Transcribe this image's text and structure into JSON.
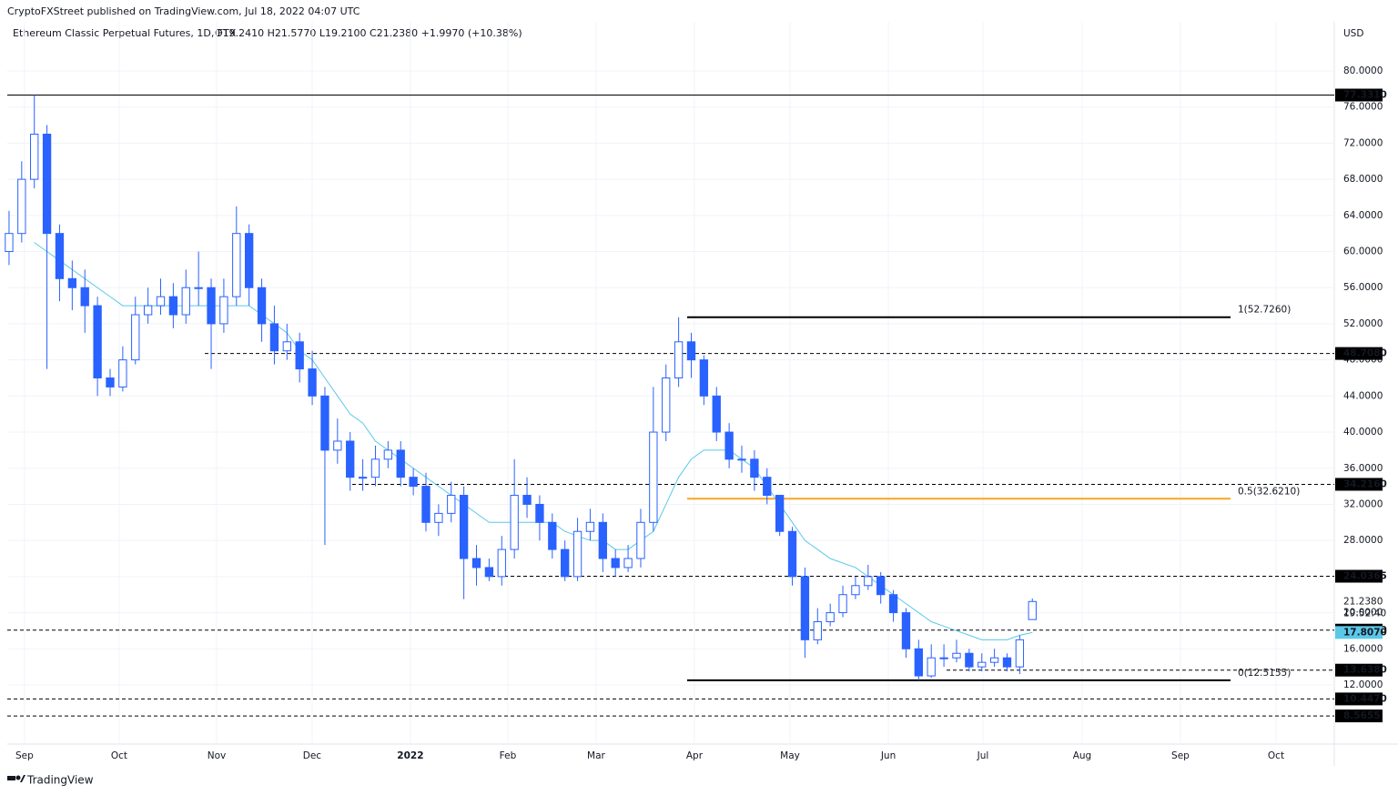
{
  "chart_data": {
    "type": "candlestick",
    "publisher": "CryptoFXStreet published on TradingView.com, Jul 18, 2022 04:07 UTC",
    "title": "Ethereum Classic Perpetual Futures, 1D, FTX",
    "ohlc_legend": "O19.2410  H21.5770  L19.2100  C21.2380  +1.9970 (+10.38%)",
    "currency": "USD",
    "brand": "TradingView",
    "countdown": "19:52:40",
    "up_color": "#ffffff",
    "down_color": "#2962ff",
    "border_color": "#2962ff",
    "open": [
      60,
      62,
      68,
      73,
      62,
      57,
      56,
      54,
      46,
      45,
      48,
      53,
      54,
      55,
      53,
      56,
      56,
      52,
      55,
      62,
      56,
      52,
      49,
      50,
      47,
      44,
      38,
      39,
      35,
      35,
      37,
      38,
      35,
      34,
      30,
      31,
      33,
      26,
      25,
      24,
      27,
      33,
      32,
      30,
      27,
      24,
      29,
      30,
      26,
      25,
      26,
      30,
      40,
      46,
      50,
      48,
      44,
      40,
      37,
      37,
      35,
      33,
      29,
      24,
      17,
      19,
      20,
      22,
      23,
      24,
      22,
      20,
      16,
      13,
      15,
      15,
      15.5,
      14,
      14.5,
      15,
      14,
      19.241
    ],
    "high": [
      64.5,
      70,
      77.331,
      74,
      63,
      59,
      58,
      55,
      47,
      49.5,
      55,
      56,
      57,
      56.5,
      58,
      60,
      57,
      57,
      65,
      63,
      57,
      54,
      52,
      51,
      49,
      45,
      41.5,
      40,
      37,
      38.5,
      39,
      39,
      36,
      35.5,
      32,
      34.5,
      34,
      27.5,
      26,
      28.5,
      37,
      35,
      33,
      31,
      28,
      30.5,
      31.5,
      31,
      27,
      27.5,
      31.5,
      45,
      47.5,
      52.726,
      51,
      48.5,
      45,
      41,
      38.5,
      38,
      36,
      32.5,
      29.5,
      25,
      20.5,
      21,
      23,
      24,
      25.3,
      24.5,
      22.5,
      20.5,
      17,
      16.5,
      16.5,
      17,
      16,
      15.5,
      16,
      15.5,
      17.5,
      21.577
    ],
    "low": [
      58.5,
      61,
      67,
      47,
      54.5,
      53.5,
      51,
      44,
      44,
      44.5,
      47.5,
      52,
      53,
      51.5,
      52,
      54,
      47,
      51,
      54,
      54,
      50,
      47.5,
      48,
      45.5,
      43,
      27.5,
      36.5,
      33.5,
      33.5,
      34,
      36,
      34,
      33,
      29,
      28.5,
      30,
      21.5,
      23,
      23.5,
      23,
      26,
      30.5,
      28,
      26,
      23.5,
      23.5,
      28,
      24.5,
      24,
      24.5,
      25,
      29,
      39,
      45,
      46,
      43,
      39,
      36,
      35.5,
      33.5,
      32,
      28.5,
      23,
      15,
      16.5,
      18.5,
      19.5,
      21.5,
      22.5,
      21,
      19,
      15,
      12.5155,
      12.8,
      14,
      14.5,
      13.5,
      13.5,
      14,
      13.5,
      13.2,
      19.21
    ],
    "close": [
      62,
      68,
      73,
      62,
      57,
      56,
      54,
      46,
      45,
      48,
      53,
      54,
      55,
      53,
      56,
      56,
      52,
      55,
      62,
      56,
      52,
      49,
      50,
      47,
      44,
      38,
      39,
      35,
      35,
      37,
      38,
      35,
      34,
      30,
      31,
      33,
      26,
      25,
      24,
      27,
      33,
      32,
      30,
      27,
      24,
      29,
      30,
      26,
      25,
      26,
      30,
      40,
      46,
      50,
      48,
      44,
      40,
      37,
      37,
      35,
      33,
      29,
      24,
      17,
      19,
      20,
      22,
      23,
      24,
      22,
      20,
      16,
      13,
      15,
      15,
      15.5,
      14,
      14.5,
      15,
      14,
      17,
      21.238
    ],
    "ma": {
      "color": "#5bc8e8",
      "values": [
        null,
        null,
        61,
        60,
        59,
        58,
        57,
        56,
        55,
        54,
        54,
        54,
        54,
        54,
        54,
        54,
        54,
        54,
        54,
        54,
        53,
        52,
        51,
        49,
        48,
        46,
        44,
        42,
        41,
        39,
        38,
        37,
        36,
        35,
        34,
        33,
        32,
        31,
        30,
        30,
        30,
        30,
        30,
        30,
        29,
        28.5,
        28,
        28,
        27,
        27,
        28,
        29,
        32,
        35,
        37,
        38,
        38,
        38,
        37,
        36,
        34,
        32,
        30,
        28,
        27,
        26,
        25.5,
        25,
        24,
        23,
        22,
        21,
        20,
        19,
        18.5,
        18,
        17.5,
        17,
        17,
        17,
        17.5,
        17.8
      ]
    },
    "xlim": [
      -0.14,
      104.9
    ],
    "xticks": [
      {
        "value": 1.22,
        "label": "Sep"
      },
      {
        "value": 8.72,
        "label": "Oct"
      },
      {
        "value": 16.43,
        "label": "Nov"
      },
      {
        "value": 23.99,
        "label": "Dec"
      },
      {
        "value": 31.77,
        "label": "2022"
      },
      {
        "value": 39.48,
        "label": "Feb"
      },
      {
        "value": 46.47,
        "label": "Mar"
      },
      {
        "value": 54.25,
        "label": "Apr"
      },
      {
        "value": 61.82,
        "label": "May"
      },
      {
        "value": 69.6,
        "label": "Jun"
      },
      {
        "value": 77.09,
        "label": "Jul"
      },
      {
        "value": 84.94,
        "label": "Aug"
      },
      {
        "value": 92.72,
        "label": "Sep"
      },
      {
        "value": 100.29,
        "label": "Oct"
      }
    ],
    "ylim": [
      5.45,
      85.44
    ],
    "yticks": [
      {
        "value": 12,
        "label": "12.0000"
      },
      {
        "value": 16,
        "label": "16.0000"
      },
      {
        "value": 20,
        "label": "20.0000"
      },
      {
        "value": 24,
        "label": "24.0000"
      },
      {
        "value": 28,
        "label": "28.0000"
      },
      {
        "value": 32,
        "label": "32.0000"
      },
      {
        "value": 36,
        "label": "36.0000"
      },
      {
        "value": 40,
        "label": "40.0000"
      },
      {
        "value": 44,
        "label": "44.0000"
      },
      {
        "value": 48,
        "label": "48.0000"
      },
      {
        "value": 52,
        "label": "52.0000"
      },
      {
        "value": 56,
        "label": "56.0000"
      },
      {
        "value": 60,
        "label": "60.0000"
      },
      {
        "value": 64,
        "label": "64.0000"
      },
      {
        "value": 68,
        "label": "68.0000"
      },
      {
        "value": 72,
        "label": "72.0000"
      },
      {
        "value": 76,
        "label": "76.0000"
      },
      {
        "value": 80,
        "label": "80.0000"
      }
    ],
    "grid": true,
    "price_badges": [
      {
        "value": 77.331,
        "label": "77.3310",
        "style": "solid",
        "color": "#000000"
      },
      {
        "value": 48.708,
        "label": "48.7080",
        "style": "dashed",
        "color": "#000000"
      },
      {
        "value": 34.216,
        "label": "34.2160",
        "style": "dashed",
        "color": "#000000"
      },
      {
        "value": 24.0365,
        "label": "24.0365",
        "style": "dashed",
        "color": "#000000"
      },
      {
        "value": 21.238,
        "label": "21.2380",
        "style": "none",
        "color": "#ffffff"
      },
      {
        "value": 18.068,
        "label": "18.0680",
        "style": "dashed",
        "color": "#000000"
      },
      {
        "value": 17.807,
        "label": "17.8070",
        "style": "none",
        "color": "#5bc8e8"
      },
      {
        "value": 13.638,
        "label": "13.6380",
        "style": "dashed",
        "color": "#000000"
      },
      {
        "value": 10.447,
        "label": "10.4470",
        "style": "dashed",
        "color": "#000000"
      },
      {
        "value": 8.5655,
        "label": "8.5655",
        "style": "dashed",
        "color": "#000000"
      }
    ],
    "fib_levels": [
      {
        "value": 52.726,
        "label": "1(52.7260)",
        "color": "#000000"
      },
      {
        "value": 32.621,
        "label": "0.5(32.6210)",
        "color": "#f5a623"
      },
      {
        "value": 12.5155,
        "label": "0(12.5155)",
        "color": "#000000"
      }
    ]
  }
}
